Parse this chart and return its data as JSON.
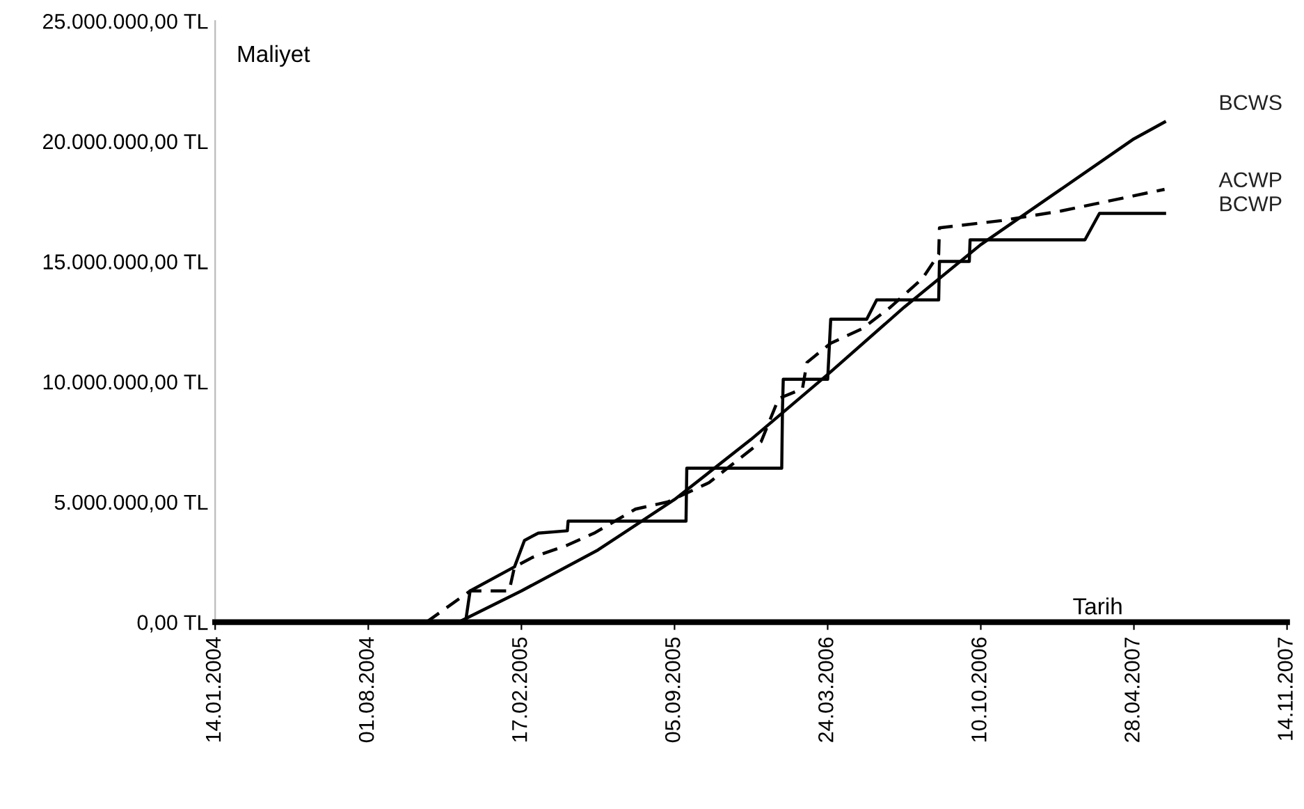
{
  "chart_data": {
    "type": "line",
    "xlabel": "Tarih",
    "ylabel": "Maliyet",
    "xlim": [
      "2004-01-14",
      "2007-11-14"
    ],
    "xticks": [
      {
        "value": "2004-01-14",
        "label": "14.01.2004"
      },
      {
        "value": "2004-08-01",
        "label": "01.08.2004"
      },
      {
        "value": "2005-02-17",
        "label": "17.02.2005"
      },
      {
        "value": "2005-09-05",
        "label": "05.09.2005"
      },
      {
        "value": "2006-03-24",
        "label": "24.03.2006"
      },
      {
        "value": "2006-10-10",
        "label": "10.10.2006"
      },
      {
        "value": "2007-04-28",
        "label": "28.04.2007"
      },
      {
        "value": "2007-11-14",
        "label": "14.11.2007"
      }
    ],
    "ylim": [
      0,
      25000000
    ],
    "yticks": [
      {
        "value": 0,
        "label": "0,00 TL"
      },
      {
        "value": 5000000,
        "label": "5.000.000,00 TL"
      },
      {
        "value": 10000000,
        "label": "10.000.000,00 TL"
      },
      {
        "value": 15000000,
        "label": "15.000.000,00 TL"
      },
      {
        "value": 20000000,
        "label": "20.000.000,00 TL"
      },
      {
        "value": 25000000,
        "label": "25.000.000,00 TL"
      }
    ],
    "grid": false,
    "legend": false,
    "marker": "none",
    "series": [
      {
        "name": "BCWS",
        "color": "#000000",
        "line_style": "solid",
        "x": [
          "2004-11-27",
          "2005-02-17",
          "2005-05-28",
          "2005-09-05",
          "2005-12-14",
          "2006-03-24",
          "2006-07-02",
          "2006-10-10",
          "2007-01-18",
          "2007-04-28",
          "2007-06-07"
        ],
        "values": [
          0,
          1300000,
          3000000,
          5100000,
          7600000,
          10300000,
          13100000,
          15700000,
          17900000,
          20100000,
          20800000
        ]
      },
      {
        "name": "ACWP",
        "color": "#000000",
        "line_style": "dashed",
        "x": [
          "2004-10-16",
          "2004-12-12",
          "2005-02-01",
          "2005-02-08",
          "2005-03-04",
          "2005-04-18",
          "2005-05-23",
          "2005-07-16",
          "2005-08-27",
          "2005-10-20",
          "2005-12-27",
          "2006-01-19",
          "2006-02-19",
          "2006-02-25",
          "2006-03-28",
          "2006-05-08",
          "2006-06-14",
          "2006-07-26",
          "2006-08-16",
          "2006-08-17",
          "2006-11-06",
          "2007-01-23",
          "2007-06-07"
        ],
        "values": [
          0,
          1300000,
          1300000,
          2300000,
          2700000,
          3200000,
          3700000,
          4700000,
          5000000,
          5800000,
          7500000,
          9300000,
          9700000,
          10800000,
          11600000,
          12200000,
          13100000,
          14300000,
          15300000,
          16400000,
          16700000,
          17100000,
          18000000
        ]
      },
      {
        "name": "BCWP",
        "color": "#000000",
        "line_style": "solid",
        "x": [
          "2004-12-06",
          "2004-12-12",
          "2005-02-08",
          "2005-02-21",
          "2005-03-11",
          "2005-04-18",
          "2005-04-19",
          "2005-09-20",
          "2005-09-21",
          "2006-01-23",
          "2006-01-24",
          "2006-01-25",
          "2006-03-24",
          "2006-03-28",
          "2006-05-14",
          "2006-05-27",
          "2006-08-16",
          "2006-08-17",
          "2006-09-25",
          "2006-09-26",
          "2007-02-23",
          "2007-03-14",
          "2007-06-07"
        ],
        "values": [
          0,
          1300000,
          2300000,
          3400000,
          3700000,
          3800000,
          4200000,
          4200000,
          6400000,
          6400000,
          8900000,
          10100000,
          10100000,
          12600000,
          12600000,
          13400000,
          13400000,
          15000000,
          15000000,
          15900000,
          15900000,
          17000000,
          17000000
        ]
      }
    ]
  }
}
